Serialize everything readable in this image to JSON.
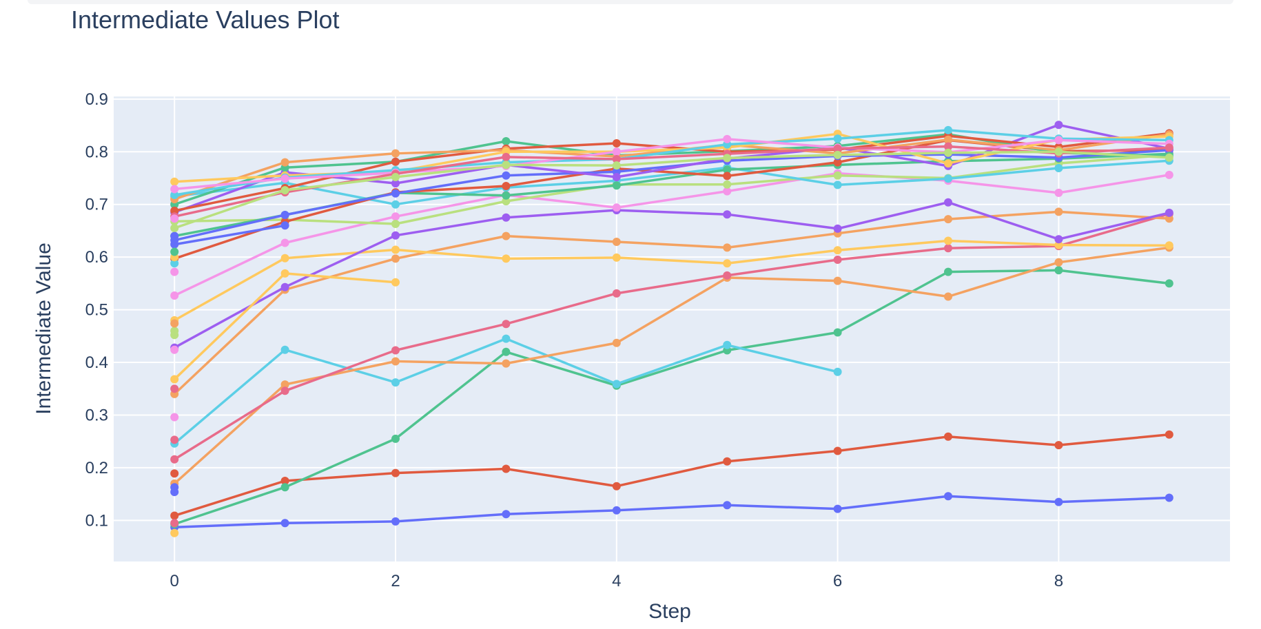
{
  "chart_data": {
    "type": "line",
    "title": "Intermediate Values Plot",
    "xlabel": "Step",
    "ylabel": "Intermediate Value",
    "xlim": [
      -0.55,
      9.55
    ],
    "ylim": [
      0.022,
      0.905
    ],
    "x_ticks": [
      0,
      2,
      4,
      6,
      8
    ],
    "y_ticks": [
      0.1,
      0.2,
      0.3,
      0.4,
      0.5,
      0.6,
      0.7,
      0.8,
      0.9
    ],
    "grid": true,
    "legend": "none",
    "marker": "circle",
    "series": [
      {
        "color": "#636efa",
        "x": [
          0,
          1,
          2,
          3,
          4,
          5,
          6,
          7,
          8,
          9
        ],
        "values": [
          0.087,
          0.095,
          0.098,
          0.112,
          0.119,
          0.129,
          0.122,
          0.146,
          0.135,
          0.143
        ]
      },
      {
        "color": "#e05a3f",
        "x": [
          0,
          1,
          2,
          3,
          4,
          5,
          6,
          7,
          8,
          9
        ],
        "values": [
          0.109,
          0.175,
          0.19,
          0.198,
          0.165,
          0.212,
          0.232,
          0.259,
          0.243,
          0.263
        ]
      },
      {
        "color": "#4fc38f",
        "x": [
          0,
          1,
          2,
          3,
          4,
          5,
          6,
          7,
          8,
          9
        ],
        "values": [
          0.093,
          0.163,
          0.255,
          0.42,
          0.356,
          0.423,
          0.457,
          0.572,
          0.575,
          0.55
        ]
      },
      {
        "color": "#5ccfe6",
        "x": [
          0,
          1,
          2,
          3,
          4,
          5,
          6
        ],
        "values": [
          0.246,
          0.424,
          0.362,
          0.445,
          0.359,
          0.433,
          0.382
        ]
      },
      {
        "color": "#f4a261",
        "x": [
          0,
          1,
          2,
          3,
          4,
          5,
          6,
          7,
          8,
          9
        ],
        "values": [
          0.17,
          0.358,
          0.402,
          0.398,
          0.437,
          0.561,
          0.555,
          0.525,
          0.59,
          0.618
        ]
      },
      {
        "color": "#e86b8a",
        "x": [
          0,
          1,
          2,
          3,
          4,
          5,
          6,
          7,
          8,
          9
        ],
        "values": [
          0.216,
          0.346,
          0.423,
          0.473,
          0.531,
          0.565,
          0.595,
          0.617,
          0.621,
          0.682
        ]
      },
      {
        "color": "#f4a261",
        "x": [
          0,
          1,
          2,
          3,
          4,
          5,
          6,
          7,
          8,
          9
        ],
        "values": [
          0.34,
          0.538,
          0.597,
          0.64,
          0.629,
          0.618,
          0.645,
          0.672,
          0.686,
          0.673
        ]
      },
      {
        "color": "#ffc95e",
        "x": [
          0,
          1,
          2,
          3,
          4,
          5,
          6,
          7,
          8,
          9
        ],
        "values": [
          0.48,
          0.598,
          0.614,
          0.597,
          0.599,
          0.588,
          0.613,
          0.631,
          0.623,
          0.622
        ]
      },
      {
        "color": "#9d5ef0",
        "x": [
          0,
          1,
          2,
          3,
          4,
          5,
          6,
          7,
          8,
          9
        ],
        "values": [
          0.428,
          0.543,
          0.641,
          0.675,
          0.689,
          0.681,
          0.654,
          0.704,
          0.634,
          0.684
        ]
      },
      {
        "color": "#ffc95e",
        "x": [
          0,
          1,
          2
        ],
        "values": [
          0.368,
          0.569,
          0.552
        ]
      },
      {
        "color": "#f595e8",
        "x": [
          0,
          1,
          2,
          3,
          4,
          5,
          6,
          7,
          8,
          9
        ],
        "values": [
          0.527,
          0.627,
          0.677,
          0.718,
          0.694,
          0.725,
          0.759,
          0.745,
          0.722,
          0.756
        ]
      },
      {
        "color": "#b9e07f",
        "x": [
          0,
          1,
          2,
          3,
          4,
          5,
          6,
          7,
          8,
          9
        ],
        "values": [
          0.668,
          0.671,
          0.663,
          0.706,
          0.738,
          0.738,
          0.755,
          0.75,
          0.778,
          0.794
        ]
      },
      {
        "color": "#5ccfe6",
        "x": [
          0,
          1,
          2,
          3,
          4,
          5,
          6,
          7,
          8,
          9
        ],
        "values": [
          0.715,
          0.741,
          0.7,
          0.732,
          0.745,
          0.77,
          0.737,
          0.749,
          0.769,
          0.783
        ]
      },
      {
        "color": "#4fc38f",
        "x": [
          0,
          1,
          2,
          3,
          4,
          5,
          6,
          7,
          8,
          9
        ],
        "values": [
          0.64,
          0.68,
          0.722,
          0.717,
          0.736,
          0.766,
          0.775,
          0.782,
          0.787,
          0.796
        ]
      },
      {
        "color": "#e05a3f",
        "x": [
          0,
          1,
          2,
          3,
          4,
          5,
          6,
          7,
          8,
          9
        ],
        "values": [
          0.597,
          0.667,
          0.723,
          0.735,
          0.768,
          0.754,
          0.78,
          0.822,
          0.801,
          0.803
        ]
      },
      {
        "color": "#636efa",
        "x": [
          0,
          1,
          2,
          3,
          4,
          5,
          6,
          7,
          8,
          9
        ],
        "values": [
          0.632,
          0.68,
          0.721,
          0.755,
          0.762,
          0.783,
          0.792,
          0.795,
          0.789,
          0.803
        ]
      },
      {
        "color": "#9d5ef0",
        "x": [
          0,
          1,
          2,
          3,
          4,
          5,
          6,
          7,
          8,
          9
        ],
        "values": [
          0.685,
          0.761,
          0.74,
          0.775,
          0.752,
          0.787,
          0.808,
          0.773,
          0.851,
          0.806
        ]
      },
      {
        "color": "#4fc38f",
        "x": [
          0,
          1,
          2,
          3,
          4,
          5,
          6,
          7,
          8,
          9
        ],
        "values": [
          0.7,
          0.77,
          0.781,
          0.82,
          0.793,
          0.801,
          0.811,
          0.833,
          0.798,
          0.792
        ]
      },
      {
        "color": "#e05a3f",
        "x": [
          0,
          1,
          2,
          3,
          4,
          5,
          6,
          7,
          8,
          9
        ],
        "values": [
          0.688,
          0.731,
          0.781,
          0.806,
          0.816,
          0.8,
          0.804,
          0.83,
          0.809,
          0.835
        ]
      },
      {
        "color": "#f4a261",
        "x": [
          0,
          1,
          2,
          3,
          4,
          5,
          6,
          7,
          8,
          9
        ],
        "values": [
          0.71,
          0.78,
          0.797,
          0.803,
          0.791,
          0.813,
          0.797,
          0.823,
          0.803,
          0.833
        ]
      },
      {
        "color": "#ffc95e",
        "x": [
          0,
          1,
          2,
          3,
          4,
          5,
          6,
          7,
          8,
          9
        ],
        "values": [
          0.743,
          0.755,
          0.762,
          0.8,
          0.8,
          0.808,
          0.834,
          0.778,
          0.823,
          0.829
        ]
      },
      {
        "color": "#5ccfe6",
        "x": [
          0,
          1,
          2,
          3,
          4,
          5,
          6,
          7,
          8,
          9
        ],
        "values": [
          0.718,
          0.751,
          0.765,
          0.78,
          0.786,
          0.814,
          0.825,
          0.841,
          0.825,
          0.822
        ]
      },
      {
        "color": "#f595e8",
        "x": [
          0,
          1,
          2,
          3,
          4,
          5,
          6,
          7,
          8,
          9
        ],
        "values": [
          0.729,
          0.749,
          0.76,
          0.773,
          0.8,
          0.824,
          0.808,
          0.799,
          0.822,
          0.815
        ]
      },
      {
        "color": "#e86b8a",
        "x": [
          0,
          1,
          2,
          3,
          4,
          5,
          6,
          7,
          8,
          9
        ],
        "values": [
          0.677,
          0.723,
          0.758,
          0.79,
          0.786,
          0.796,
          0.806,
          0.81,
          0.797,
          0.808
        ]
      },
      {
        "color": "#b9e07f",
        "x": [
          0,
          1,
          2,
          3,
          4,
          5,
          6,
          7,
          8,
          9
        ],
        "values": [
          0.655,
          0.727,
          0.752,
          0.775,
          0.774,
          0.788,
          0.794,
          0.798,
          0.8,
          0.789
        ]
      },
      {
        "color": "#636efa",
        "x": [
          0,
          1
        ],
        "values": [
          0.624,
          0.66
        ]
      }
    ],
    "isolated_points": [
      {
        "color": "#ffc95e",
        "x": 0,
        "value": 0.076
      },
      {
        "color": "#e86b8a",
        "x": 0,
        "value": 0.095
      },
      {
        "color": "#636efa",
        "x": 0,
        "value": 0.154
      },
      {
        "color": "#636efa",
        "x": 0,
        "value": 0.163
      },
      {
        "color": "#e05a3f",
        "x": 0,
        "value": 0.189
      },
      {
        "color": "#e86b8a",
        "x": 0,
        "value": 0.253
      },
      {
        "color": "#f595e8",
        "x": 0,
        "value": 0.296
      },
      {
        "color": "#e86b8a",
        "x": 0,
        "value": 0.35
      },
      {
        "color": "#f595e8",
        "x": 0,
        "value": 0.424
      },
      {
        "color": "#b9e07f",
        "x": 0,
        "value": 0.452
      },
      {
        "color": "#b9e07f",
        "x": 0,
        "value": 0.46
      },
      {
        "color": "#f4a261",
        "x": 0,
        "value": 0.474
      },
      {
        "color": "#f595e8",
        "x": 0,
        "value": 0.572
      },
      {
        "color": "#5ccfe6",
        "x": 0,
        "value": 0.588
      },
      {
        "color": "#ffc95e",
        "x": 0,
        "value": 0.6
      },
      {
        "color": "#4fc38f",
        "x": 0,
        "value": 0.61
      },
      {
        "color": "#636efa",
        "x": 0,
        "value": 0.64
      },
      {
        "color": "#f595e8",
        "x": 0,
        "value": 0.673
      }
    ]
  }
}
